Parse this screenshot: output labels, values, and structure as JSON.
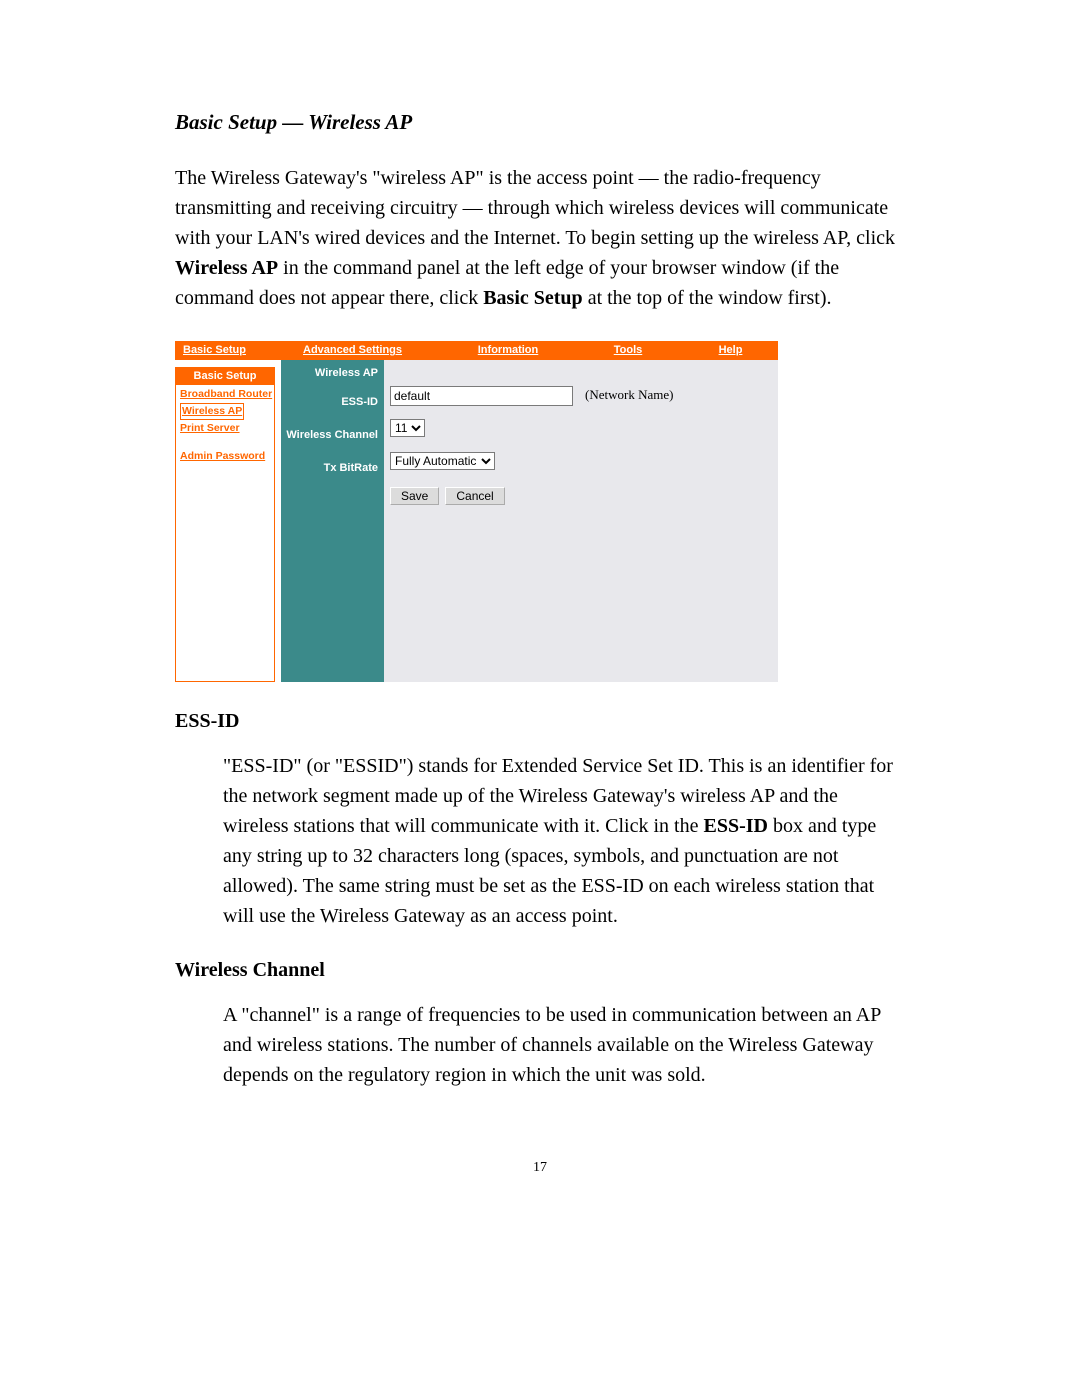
{
  "title": "Basic Setup — Wireless AP",
  "intro": {
    "p1a": "The Wireless Gateway's \"wireless AP\" is the access point  — the radio-frequency transmitting and receiving circuitry  — through which wireless devices will communicate with your LAN's wired devices and the Internet. To begin setting up the wireless AP, click ",
    "p1b": "Wireless AP",
    "p1c": " in the command panel at the left edge of your browser window (if the command does not appear there, click ",
    "p1d": "Basic Setup",
    "p1e": " at the top of the window first)."
  },
  "shot": {
    "nav": {
      "basic": "Basic Setup",
      "advanced": "Advanced Settings",
      "info": "Information",
      "tools": "Tools",
      "help": "Help"
    },
    "side": {
      "head": "Basic Setup",
      "broadband": "Broadband Router",
      "wireless": "Wireless AP",
      "print": "Print Server",
      "admin": "Admin Password"
    },
    "labels": {
      "head": "Wireless AP",
      "ess": "ESS-ID",
      "chan": "Wireless Channel",
      "tx": "Tx BitRate"
    },
    "form": {
      "ess_value": "default",
      "ess_note": "(Network Name)",
      "chan_value": "11",
      "tx_value": "Fully Automatic",
      "save": "Save",
      "cancel": "Cancel"
    },
    "colors": {
      "orange": "#ff6600",
      "teal": "#3b8a8a",
      "panel": "#e8e8ec"
    }
  },
  "ess": {
    "head": "ESS-ID",
    "p1a": "\"ESS-ID\" (or \"ESSID\") stands for Extended Service Set ID. This is an identifier for the network segment made up of the Wireless Gateway's wireless AP and the wireless stations that will communicate with it. Click in the ",
    "p1b": "ESS-ID",
    "p1c": " box and type any string up to 32 characters long (spaces, symbols, and punctuation are not allowed). The same string must be set as the ESS-ID on each wireless station that will use the Wireless Gateway as an access point."
  },
  "chan": {
    "head": "Wireless Channel",
    "p1": "A \"channel\" is a range of frequencies to be used in communication between an AP and wireless stations. The number of channels available on the Wireless Gateway depends on the regulatory region in which the unit was sold."
  },
  "pagenum": "17"
}
